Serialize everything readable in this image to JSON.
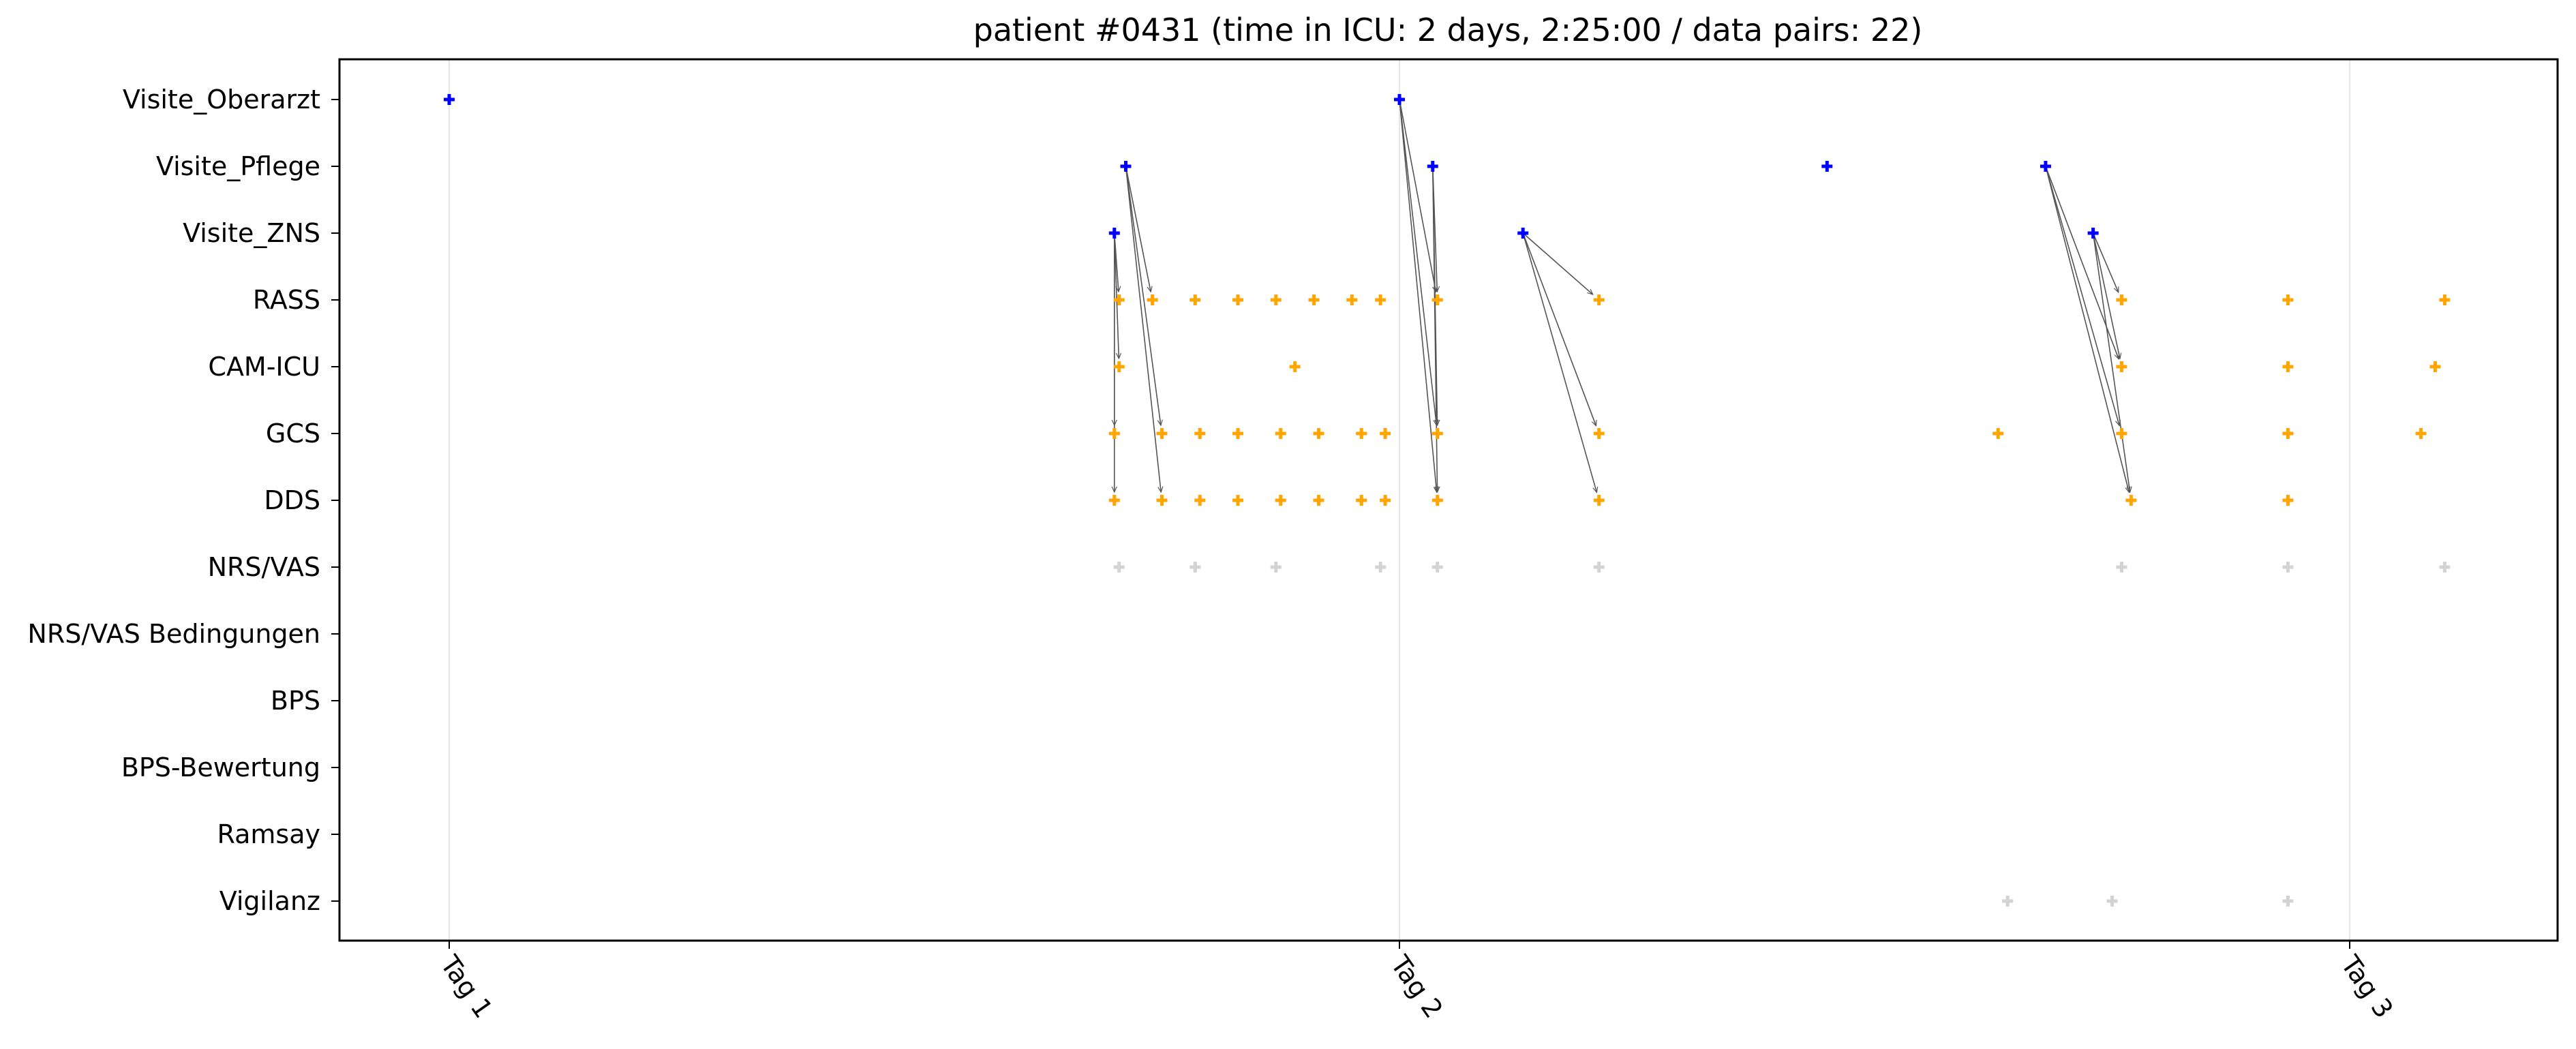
{
  "chart_data": {
    "type": "scatter",
    "title": "patient #0431 (time in ICU: 2 days, 2:25:00 / data pairs: 22)",
    "xlabel": "",
    "ylabel": "",
    "xlim": [
      -0.115,
      2.2167
    ],
    "x_unit": "days",
    "x_ticks": [
      {
        "value": 0,
        "label": "Tag 1"
      },
      {
        "value": 1,
        "label": "Tag 2"
      },
      {
        "value": 2,
        "label": "Tag 3"
      }
    ],
    "categories": [
      "Visite_Oberarzt",
      "Visite_Pflege",
      "Visite_ZNS",
      "RASS",
      "CAM-ICU",
      "GCS",
      "DDS",
      "NRS/VAS",
      "NRS/VAS Bedingungen",
      "BPS",
      "BPS-Bewertung",
      "Ramsay",
      "Vigilanz"
    ],
    "grid": "vertical lines at day ticks",
    "colors": {
      "visit": "#0000ff",
      "assessment": "#ffa500",
      "unpaired": "#d3d3d3",
      "arrow": "#555555",
      "grid": "#e6e6e6"
    },
    "series": [
      {
        "category": "Visite_Oberarzt",
        "color": "#0000ff",
        "x": [
          0.0,
          1.0
        ]
      },
      {
        "category": "Visite_Pflege",
        "color": "#0000ff",
        "x": [
          0.712,
          1.035,
          1.45,
          1.68
        ]
      },
      {
        "category": "Visite_ZNS",
        "color": "#0000ff",
        "x": [
          0.7,
          1.13,
          1.73
        ]
      },
      {
        "category": "RASS",
        "color": "#ffa500",
        "x": [
          0.705,
          0.74,
          0.785,
          0.83,
          0.87,
          0.91,
          0.95,
          0.98,
          1.04,
          1.21,
          1.76,
          1.935,
          2.1
        ]
      },
      {
        "category": "CAM-ICU",
        "color": "#ffa500",
        "x": [
          0.705,
          0.89,
          1.76,
          1.935,
          2.09
        ]
      },
      {
        "category": "GCS",
        "color": "#ffa500",
        "x": [
          0.7,
          0.75,
          0.79,
          0.83,
          0.875,
          0.915,
          0.96,
          0.985,
          1.04,
          1.21,
          1.63,
          1.76,
          1.935,
          2.075
        ]
      },
      {
        "category": "DDS",
        "color": "#ffa500",
        "x": [
          0.7,
          0.75,
          0.79,
          0.83,
          0.875,
          0.915,
          0.96,
          0.985,
          1.04,
          1.21,
          1.77,
          1.935
        ]
      },
      {
        "category": "NRS/VAS",
        "color": "#d3d3d3",
        "x": [
          0.705,
          0.785,
          0.87,
          0.98,
          1.04,
          1.21,
          1.76,
          1.935,
          2.1
        ]
      },
      {
        "category": "NRS/VAS Bedingungen",
        "color": "#d3d3d3",
        "x": []
      },
      {
        "category": "BPS",
        "color": "#d3d3d3",
        "x": []
      },
      {
        "category": "BPS-Bewertung",
        "color": "#d3d3d3",
        "x": []
      },
      {
        "category": "Ramsay",
        "color": "#d3d3d3",
        "x": []
      },
      {
        "category": "Vigilanz",
        "color": "#d3d3d3",
        "x": [
          1.64,
          1.75,
          1.935
        ]
      }
    ],
    "pairs": [
      {
        "from": [
          "Visite_ZNS",
          0.7
        ],
        "to": [
          "RASS",
          0.705
        ]
      },
      {
        "from": [
          "Visite_ZNS",
          0.7
        ],
        "to": [
          "CAM-ICU",
          0.705
        ]
      },
      {
        "from": [
          "Visite_ZNS",
          0.7
        ],
        "to": [
          "GCS",
          0.7
        ]
      },
      {
        "from": [
          "Visite_ZNS",
          0.7
        ],
        "to": [
          "DDS",
          0.7
        ]
      },
      {
        "from": [
          "Visite_Pflege",
          0.712
        ],
        "to": [
          "RASS",
          0.74
        ]
      },
      {
        "from": [
          "Visite_Pflege",
          0.712
        ],
        "to": [
          "GCS",
          0.75
        ]
      },
      {
        "from": [
          "Visite_Pflege",
          0.712
        ],
        "to": [
          "DDS",
          0.75
        ]
      },
      {
        "from": [
          "Visite_Oberarzt",
          1.0
        ],
        "to": [
          "RASS",
          1.04
        ]
      },
      {
        "from": [
          "Visite_Oberarzt",
          1.0
        ],
        "to": [
          "GCS",
          1.04
        ]
      },
      {
        "from": [
          "Visite_Oberarzt",
          1.0
        ],
        "to": [
          "DDS",
          1.04
        ]
      },
      {
        "from": [
          "Visite_Pflege",
          1.035
        ],
        "to": [
          "RASS",
          1.04
        ]
      },
      {
        "from": [
          "Visite_Pflege",
          1.035
        ],
        "to": [
          "GCS",
          1.04
        ]
      },
      {
        "from": [
          "Visite_Pflege",
          1.035
        ],
        "to": [
          "DDS",
          1.04
        ]
      },
      {
        "from": [
          "Visite_ZNS",
          1.13
        ],
        "to": [
          "RASS",
          1.21
        ]
      },
      {
        "from": [
          "Visite_ZNS",
          1.13
        ],
        "to": [
          "GCS",
          1.21
        ]
      },
      {
        "from": [
          "Visite_ZNS",
          1.13
        ],
        "to": [
          "DDS",
          1.21
        ]
      },
      {
        "from": [
          "Visite_Pflege",
          1.68
        ],
        "to": [
          "CAM-ICU",
          1.76
        ]
      },
      {
        "from": [
          "Visite_Pflege",
          1.68
        ],
        "to": [
          "GCS",
          1.76
        ]
      },
      {
        "from": [
          "Visite_Pflege",
          1.68
        ],
        "to": [
          "DDS",
          1.77
        ]
      },
      {
        "from": [
          "Visite_ZNS",
          1.73
        ],
        "to": [
          "RASS",
          1.76
        ]
      },
      {
        "from": [
          "Visite_ZNS",
          1.73
        ],
        "to": [
          "CAM-ICU",
          1.76
        ]
      },
      {
        "from": [
          "Visite_ZNS",
          1.73
        ],
        "to": [
          "DDS",
          1.77
        ]
      }
    ]
  }
}
